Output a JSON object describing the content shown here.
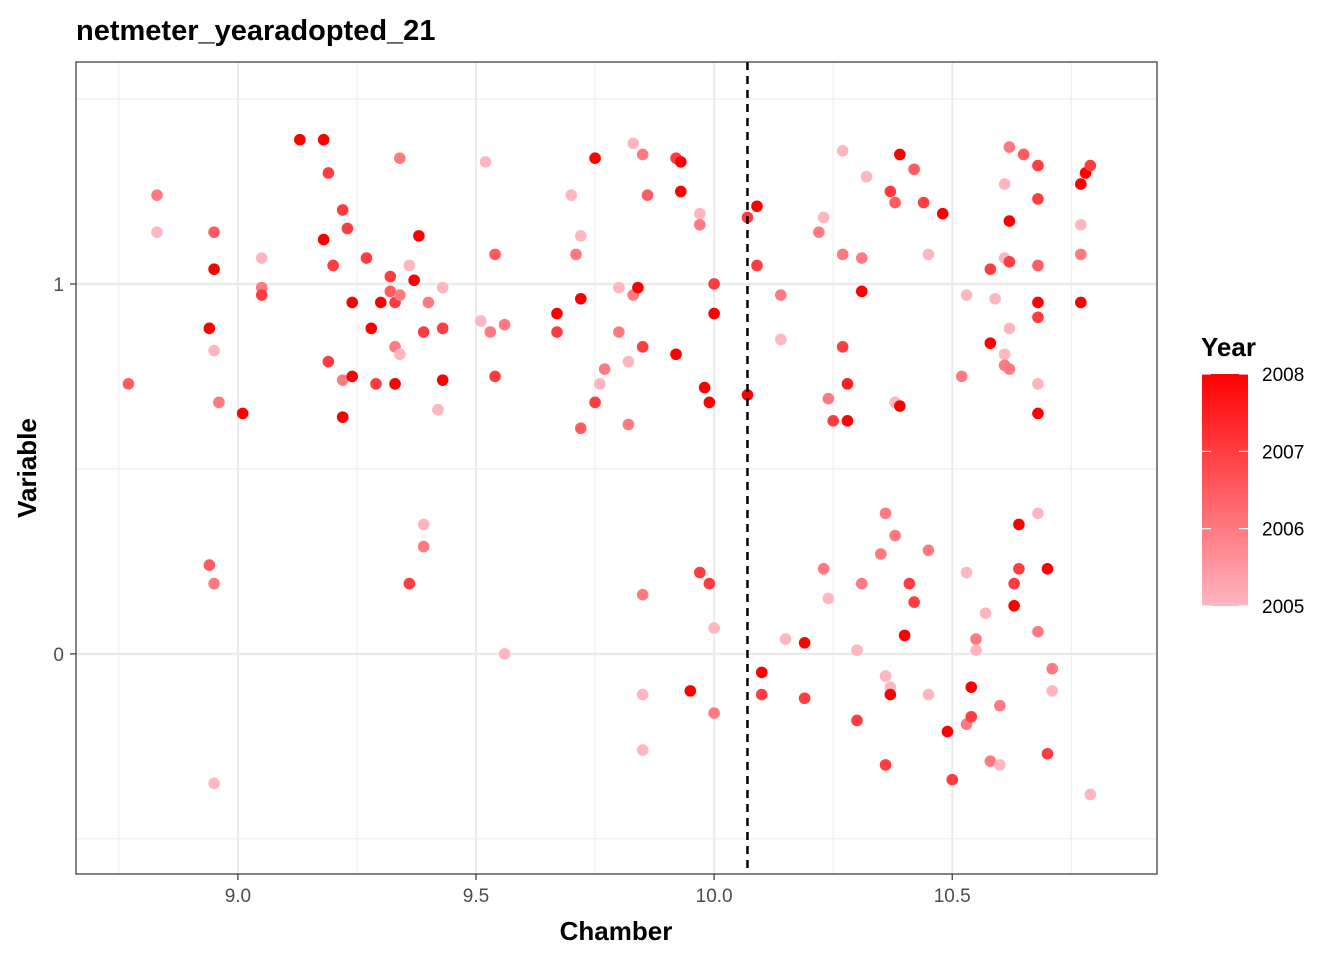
{
  "chart_data": {
    "type": "scatter",
    "title": "netmeter_yearadopted_21",
    "xlabel": "Chamber",
    "ylabel": "Variable",
    "xlim": [
      8.66,
      10.93
    ],
    "ylim": [
      -0.595,
      1.6
    ],
    "x_ticks": [
      9.0,
      9.5,
      10.0,
      10.5
    ],
    "x_tick_labels": [
      "9.0",
      "9.5",
      "10.0",
      "10.5"
    ],
    "y_ticks": [
      0,
      1
    ],
    "y_tick_labels": [
      "0",
      "1"
    ],
    "cutoff_x": 10.07,
    "grid": true,
    "legend": {
      "title": "Year",
      "placement": "right",
      "min": 2005,
      "max": 2008,
      "ticks": [
        2005,
        2006,
        2007,
        2008
      ],
      "tick_labels": [
        "2005",
        "2006",
        "2007",
        "2008"
      ],
      "color_low": "#FFB6C1",
      "color_high": "#FF0000"
    },
    "points": [
      [
        8.77,
        0.73,
        2006.5
      ],
      [
        8.83,
        1.24,
        2006
      ],
      [
        8.83,
        1.14,
        2005
      ],
      [
        8.94,
        0.24,
        2006.5
      ],
      [
        8.94,
        0.88,
        2008
      ],
      [
        8.95,
        1.04,
        2008
      ],
      [
        8.95,
        1.14,
        2006.5
      ],
      [
        8.95,
        0.19,
        2006
      ],
      [
        8.95,
        0.82,
        2005
      ],
      [
        8.96,
        0.68,
        2006
      ],
      [
        8.95,
        -0.35,
        2005
      ],
      [
        9.01,
        0.65,
        2008
      ],
      [
        9.05,
        1.07,
        2005
      ],
      [
        9.05,
        0.99,
        2006
      ],
      [
        9.05,
        0.97,
        2007
      ],
      [
        9.13,
        1.39,
        2008
      ],
      [
        9.18,
        1.39,
        2008
      ],
      [
        9.18,
        1.12,
        2008
      ],
      [
        9.19,
        1.3,
        2007
      ],
      [
        9.19,
        0.79,
        2007
      ],
      [
        9.2,
        1.05,
        2007
      ],
      [
        9.22,
        1.2,
        2007
      ],
      [
        9.22,
        0.74,
        2006
      ],
      [
        9.22,
        0.64,
        2005
      ],
      [
        9.22,
        0.64,
        2008
      ],
      [
        9.23,
        1.15,
        2007
      ],
      [
        9.24,
        0.75,
        2008
      ],
      [
        9.24,
        0.95,
        2008
      ],
      [
        9.27,
        1.07,
        2007
      ],
      [
        9.28,
        0.88,
        2008
      ],
      [
        9.29,
        0.73,
        2007
      ],
      [
        9.3,
        0.95,
        2008
      ],
      [
        9.32,
        1.02,
        2007
      ],
      [
        9.32,
        0.98,
        2006.5
      ],
      [
        9.33,
        0.83,
        2006
      ],
      [
        9.33,
        0.95,
        2007
      ],
      [
        9.33,
        0.73,
        2008
      ],
      [
        9.34,
        1.34,
        2006
      ],
      [
        9.34,
        0.81,
        2005
      ],
      [
        9.34,
        0.97,
        2006
      ],
      [
        9.36,
        1.05,
        2005
      ],
      [
        9.36,
        0.19,
        2007
      ],
      [
        9.37,
        1.01,
        2008
      ],
      [
        9.38,
        1.13,
        2008
      ],
      [
        9.39,
        0.87,
        2007
      ],
      [
        9.39,
        0.29,
        2006
      ],
      [
        9.39,
        0.35,
        2005
      ],
      [
        9.4,
        0.95,
        2006
      ],
      [
        9.42,
        0.66,
        2005
      ],
      [
        9.43,
        0.99,
        2005
      ],
      [
        9.43,
        0.88,
        2007
      ],
      [
        9.43,
        0.74,
        2008
      ],
      [
        9.51,
        0.9,
        2005
      ],
      [
        9.52,
        1.33,
        2005
      ],
      [
        9.53,
        0.87,
        2006
      ],
      [
        9.54,
        0.75,
        2007
      ],
      [
        9.54,
        1.08,
        2006.5
      ],
      [
        9.56,
        0.89,
        2006
      ],
      [
        9.56,
        0.0,
        2005
      ],
      [
        9.67,
        0.87,
        2007
      ],
      [
        9.67,
        0.92,
        2008
      ],
      [
        9.7,
        1.24,
        2005
      ],
      [
        9.71,
        1.08,
        2006
      ],
      [
        9.72,
        1.13,
        2005
      ],
      [
        9.72,
        0.61,
        2006.5
      ],
      [
        9.72,
        0.96,
        2008
      ],
      [
        9.75,
        1.34,
        2008
      ],
      [
        9.75,
        0.68,
        2007
      ],
      [
        9.76,
        0.73,
        2005
      ],
      [
        9.77,
        0.77,
        2006
      ],
      [
        9.8,
        0.99,
        2005
      ],
      [
        9.8,
        0.87,
        2006
      ],
      [
        9.82,
        0.79,
        2005
      ],
      [
        9.82,
        0.62,
        2006
      ],
      [
        9.83,
        1.38,
        2005
      ],
      [
        9.83,
        0.97,
        2006
      ],
      [
        9.84,
        0.99,
        2008
      ],
      [
        9.85,
        0.83,
        2007
      ],
      [
        9.85,
        1.35,
        2006
      ],
      [
        9.85,
        -0.26,
        2005
      ],
      [
        9.85,
        0.16,
        2006
      ],
      [
        9.85,
        -0.11,
        2005
      ],
      [
        9.86,
        1.24,
        2006.5
      ],
      [
        9.92,
        1.34,
        2007
      ],
      [
        9.92,
        0.81,
        2008
      ],
      [
        9.93,
        1.33,
        2008
      ],
      [
        9.93,
        1.25,
        2008
      ],
      [
        9.95,
        -0.1,
        2008
      ],
      [
        9.97,
        1.19,
        2005
      ],
      [
        9.97,
        1.16,
        2006
      ],
      [
        9.97,
        0.22,
        2007
      ],
      [
        9.98,
        0.72,
        2008
      ],
      [
        9.99,
        0.68,
        2008
      ],
      [
        9.99,
        0.19,
        2007
      ],
      [
        10.0,
        0.07,
        2005
      ],
      [
        10.0,
        -0.16,
        2006
      ],
      [
        10.0,
        0.92,
        2008
      ],
      [
        10.0,
        1.0,
        2007
      ],
      [
        10.07,
        0.7,
        2008
      ],
      [
        10.07,
        1.18,
        2007
      ],
      [
        10.09,
        1.21,
        2008
      ],
      [
        10.09,
        1.05,
        2007
      ],
      [
        10.1,
        -0.05,
        2008
      ],
      [
        10.1,
        -0.11,
        2007
      ],
      [
        10.14,
        0.97,
        2006
      ],
      [
        10.14,
        0.85,
        2005
      ],
      [
        10.15,
        0.04,
        2005
      ],
      [
        10.19,
        0.03,
        2008
      ],
      [
        10.19,
        -0.12,
        2007
      ],
      [
        10.22,
        1.14,
        2006
      ],
      [
        10.23,
        1.18,
        2005
      ],
      [
        10.23,
        0.23,
        2006
      ],
      [
        10.24,
        0.15,
        2005
      ],
      [
        10.24,
        0.69,
        2006
      ],
      [
        10.25,
        0.63,
        2007
      ],
      [
        10.27,
        1.36,
        2005
      ],
      [
        10.27,
        1.08,
        2006
      ],
      [
        10.27,
        0.83,
        2007
      ],
      [
        10.28,
        0.63,
        2008
      ],
      [
        10.28,
        0.73,
        2007.5
      ],
      [
        10.3,
        0.01,
        2005
      ],
      [
        10.3,
        -0.18,
        2007
      ],
      [
        10.31,
        0.19,
        2006
      ],
      [
        10.31,
        1.07,
        2006
      ],
      [
        10.31,
        0.98,
        2008
      ],
      [
        10.32,
        1.29,
        2005
      ],
      [
        10.35,
        0.27,
        2006
      ],
      [
        10.36,
        -0.06,
        2005
      ],
      [
        10.36,
        0.38,
        2006
      ],
      [
        10.36,
        -0.3,
        2007
      ],
      [
        10.37,
        -0.09,
        2005
      ],
      [
        10.37,
        -0.11,
        2008
      ],
      [
        10.37,
        1.25,
        2007
      ],
      [
        10.38,
        1.22,
        2006.5
      ],
      [
        10.38,
        0.32,
        2006
      ],
      [
        10.38,
        0.68,
        2005
      ],
      [
        10.39,
        0.67,
        2008
      ],
      [
        10.39,
        1.35,
        2008
      ],
      [
        10.4,
        0.05,
        2008
      ],
      [
        10.41,
        0.19,
        2007
      ],
      [
        10.42,
        1.31,
        2006.5
      ],
      [
        10.42,
        0.14,
        2007
      ],
      [
        10.44,
        1.22,
        2007
      ],
      [
        10.45,
        1.08,
        2005
      ],
      [
        10.45,
        0.28,
        2006
      ],
      [
        10.45,
        -0.11,
        2005
      ],
      [
        10.48,
        1.19,
        2008
      ],
      [
        10.49,
        -0.21,
        2008
      ],
      [
        10.5,
        -0.34,
        2007
      ],
      [
        10.52,
        0.75,
        2006
      ],
      [
        10.53,
        0.97,
        2005
      ],
      [
        10.53,
        0.22,
        2005
      ],
      [
        10.53,
        -0.19,
        2006
      ],
      [
        10.54,
        -0.17,
        2007
      ],
      [
        10.54,
        -0.09,
        2008
      ],
      [
        10.55,
        0.04,
        2006
      ],
      [
        10.55,
        0.01,
        2005
      ],
      [
        10.57,
        0.11,
        2005
      ],
      [
        10.58,
        1.04,
        2007
      ],
      [
        10.58,
        0.84,
        2008
      ],
      [
        10.58,
        -0.29,
        2006
      ],
      [
        10.59,
        0.96,
        2005
      ],
      [
        10.6,
        -0.3,
        2005
      ],
      [
        10.6,
        -0.14,
        2006
      ],
      [
        10.61,
        1.07,
        2005
      ],
      [
        10.61,
        1.27,
        2005
      ],
      [
        10.61,
        0.81,
        2005
      ],
      [
        10.61,
        0.78,
        2006
      ],
      [
        10.62,
        1.37,
        2006
      ],
      [
        10.62,
        1.17,
        2008
      ],
      [
        10.62,
        1.06,
        2007
      ],
      [
        10.62,
        0.88,
        2005
      ],
      [
        10.62,
        0.77,
        2006
      ],
      [
        10.63,
        0.13,
        2008
      ],
      [
        10.63,
        0.19,
        2007
      ],
      [
        10.64,
        0.23,
        2007
      ],
      [
        10.64,
        0.35,
        2008
      ],
      [
        10.65,
        1.35,
        2006.5
      ],
      [
        10.68,
        0.06,
        2006
      ],
      [
        10.68,
        0.38,
        2005
      ],
      [
        10.68,
        1.32,
        2007
      ],
      [
        10.68,
        1.23,
        2007
      ],
      [
        10.68,
        1.05,
        2006.5
      ],
      [
        10.68,
        0.95,
        2008
      ],
      [
        10.68,
        0.91,
        2007
      ],
      [
        10.68,
        0.73,
        2005
      ],
      [
        10.68,
        0.65,
        2008
      ],
      [
        10.7,
        0.23,
        2008
      ],
      [
        10.7,
        -0.27,
        2007
      ],
      [
        10.71,
        -0.04,
        2006
      ],
      [
        10.71,
        -0.1,
        2005
      ],
      [
        10.77,
        1.27,
        2008
      ],
      [
        10.77,
        1.16,
        2005
      ],
      [
        10.77,
        1.08,
        2006
      ],
      [
        10.77,
        0.95,
        2008
      ],
      [
        10.78,
        1.3,
        2008
      ],
      [
        10.79,
        1.32,
        2007
      ],
      [
        10.79,
        -0.38,
        2005
      ]
    ]
  }
}
